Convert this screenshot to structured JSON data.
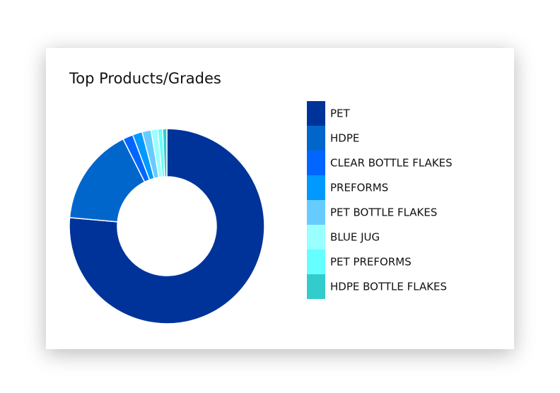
{
  "chart_data": {
    "type": "donut",
    "title": "Top Products/Grades",
    "categories": [
      "PET",
      "HDPE",
      "CLEAR BOTTLE FLAKES",
      "PREFORMS",
      "PET BOTTLE FLAKES",
      "BLUE JUG",
      "PET PREFORMS",
      "HDPE BOTTLE FLAKES"
    ],
    "values": [
      76.4,
      16.2,
      1.7,
      1.6,
      1.5,
      1.1,
      0.8,
      0.7
    ],
    "colors": [
      "#003399",
      "#0066cc",
      "#0066ff",
      "#0099ff",
      "#66ccff",
      "#99ffff",
      "#66ffff",
      "#33cccc"
    ],
    "legend": "right"
  }
}
